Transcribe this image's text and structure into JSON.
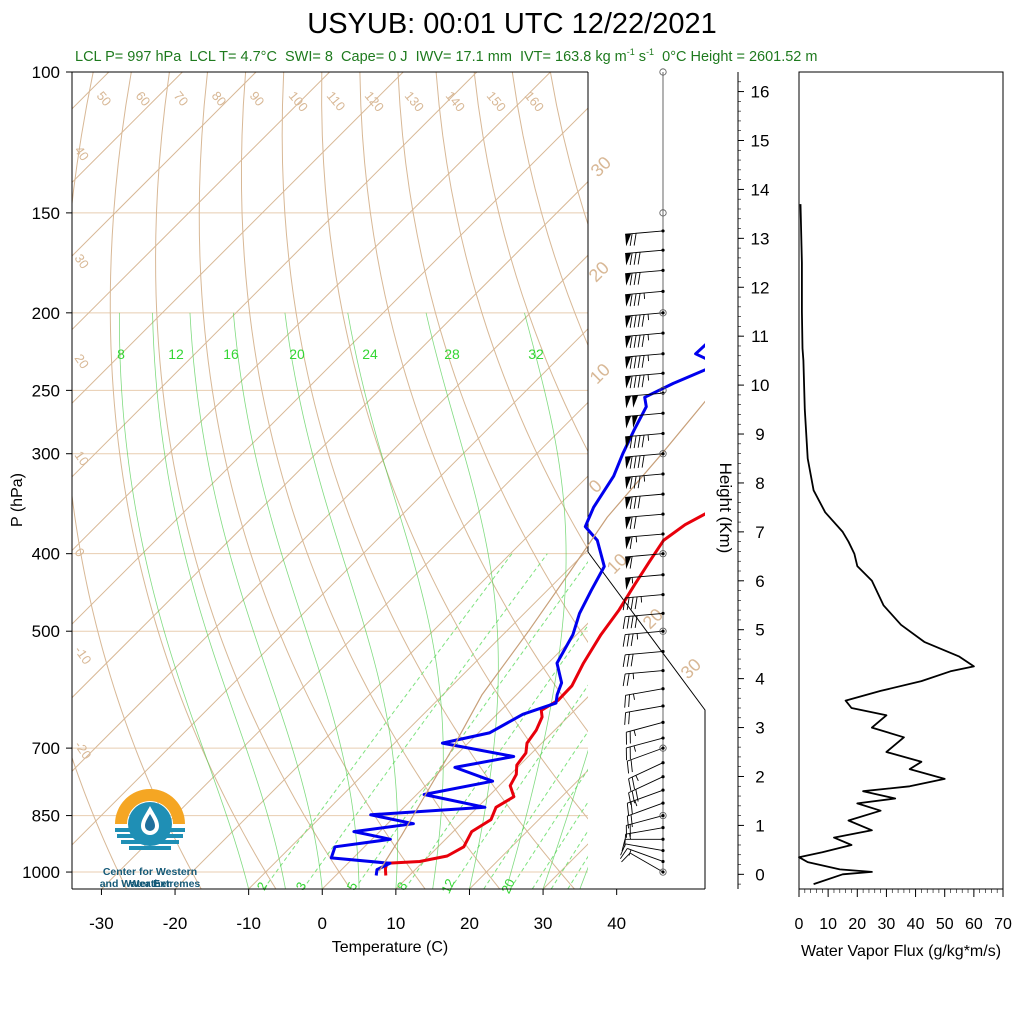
{
  "header": {
    "title": "USYUB: 00:01 UTC 12/22/2021",
    "lcl_p": "LCL P= 997 hPa",
    "lcl_t": "LCL T= 4.7°C",
    "swi": "SWI= 8",
    "cape": "Cape= 0 J",
    "iwv": "IWV= 17.1 mm",
    "ivt": "IVT= 163.8 kg m",
    "ivt_exp1": "-1",
    "ivt_mid": " s",
    "ivt_exp2": "-1",
    "zero_height": "0°C Height = 2601.52 m"
  },
  "logo": {
    "line1": "Center for Western Weather",
    "line2": "and Water Extremes",
    "colors": {
      "sun": "#f5a623",
      "water": "#1f8fb5",
      "drop": "#1f6f9c"
    }
  },
  "chart_data": [
    {
      "type": "line",
      "subtype": "skew-T log-P sounding",
      "xlabel": "Temperature (C)",
      "ylabel": "P (hPa)",
      "xlim": [
        -34,
        52
      ],
      "ylim": [
        1050,
        100
      ],
      "y_scale": "log",
      "x_ticks": [
        -30,
        -20,
        -10,
        0,
        10,
        20,
        30,
        40
      ],
      "y_ticks": [
        100,
        150,
        200,
        250,
        300,
        400,
        500,
        700,
        850,
        1000
      ],
      "grid": true,
      "colors": {
        "temperature": "#e8000b",
        "dewpoint": "#0000ee",
        "parcel": "#c8a07a",
        "isotherms": "#d8b896",
        "dry_adiabats": "#d8b896",
        "mixing_ratio": "#7ee27e",
        "moist_adiabats": "#4ccc4c",
        "isobars": "#e8cdb0"
      },
      "dry_adiabat_labels": [
        "50",
        "60",
        "70",
        "80",
        "90",
        "100",
        "110",
        "120",
        "130",
        "140",
        "150",
        "160"
      ],
      "isotherm_labels": [
        "40",
        "30",
        "20",
        "10",
        "0",
        "-10",
        "-20"
      ],
      "mixing_ratio_labels_top": [
        "8",
        "12",
        "16",
        "20",
        "24",
        "28",
        "32"
      ],
      "mixing_ratio_labels_bottom": [
        "2",
        "3",
        "5",
        "8",
        "12",
        "20"
      ],
      "hodograph_ring_labels": [
        "30",
        "20",
        "10",
        "0",
        "10",
        "20",
        "30"
      ],
      "series": [
        {
          "name": "Temperature",
          "points": [
            [
              6.8,
              1010
            ],
            [
              5.8,
              990
            ],
            [
              5.3,
              975
            ],
            [
              9.5,
              970
            ],
            [
              12.5,
              955
            ],
            [
              13.5,
              930
            ],
            [
              12.5,
              890
            ],
            [
              13.5,
              860
            ],
            [
              12.5,
              830
            ],
            [
              13.5,
              805
            ],
            [
              11.5,
              780
            ],
            [
              10.8,
              755
            ],
            [
              9.6,
              735
            ],
            [
              9.2,
              710
            ],
            [
              8.0,
              690
            ],
            [
              7.5,
              665
            ],
            [
              6.5,
              640
            ],
            [
              5.5,
              628
            ],
            [
              6.4,
              610
            ],
            [
              6.3,
              585
            ],
            [
              4.8,
              548
            ],
            [
              3.3,
              505
            ],
            [
              2.4,
              470
            ],
            [
              1.2,
              440
            ],
            [
              0.0,
              410
            ],
            [
              -1.0,
              385
            ],
            [
              -0.2,
              368
            ],
            [
              1.5,
              353
            ],
            [
              1.3,
              330
            ],
            [
              0.6,
              300
            ],
            [
              -0.8,
              278
            ],
            [
              -3.0,
              260
            ],
            [
              -3.8,
              245
            ],
            [
              -3.0,
              232
            ],
            [
              -3.6,
              215
            ],
            [
              -4.3,
              200
            ],
            [
              -3.0,
              188
            ],
            [
              -3.0,
              176
            ],
            [
              -1.5,
              168
            ],
            [
              -0.8,
              160
            ],
            [
              1.2,
              153
            ],
            [
              1.2,
              150
            ]
          ]
        },
        {
          "name": "Dewpoint",
          "points": [
            [
              5.5,
              1010
            ],
            [
              4.8,
              993
            ],
            [
              5.7,
              975
            ],
            [
              -3,
              960
            ],
            [
              -4,
              930
            ],
            [
              2.5,
              910
            ],
            [
              -3.5,
              890
            ],
            [
              3.5,
              870
            ],
            [
              -3.5,
              848
            ],
            [
              11,
              830
            ],
            [
              1,
              800
            ],
            [
              8.5,
              770
            ],
            [
              1.5,
              740
            ],
            [
              8,
              717
            ],
            [
              -3.5,
              690
            ],
            [
              1.5,
              670
            ],
            [
              3.5,
              635
            ],
            [
              6.5,
              615
            ],
            [
              5.5,
              600
            ],
            [
              4.5,
              580
            ],
            [
              1.2,
              548
            ],
            [
              -0.5,
              505
            ],
            [
              -2.5,
              475
            ],
            [
              -4.0,
              445
            ],
            [
              -5.5,
              415
            ],
            [
              -10.0,
              385
            ],
            [
              -13.5,
              370
            ],
            [
              -15.0,
              350
            ],
            [
              -16.5,
              320
            ],
            [
              -18.3,
              300
            ],
            [
              -20.0,
              280
            ],
            [
              -21.5,
              262
            ],
            [
              -23.0,
              255
            ],
            [
              -21.0,
              245
            ],
            [
              -17.5,
              232
            ],
            [
              -22,
              225
            ],
            [
              -21.5,
              200
            ],
            [
              -24,
              185
            ],
            [
              -23,
              175
            ],
            [
              -18.5,
              162
            ],
            [
              -17.0,
              158
            ],
            [
              -15.5,
              152
            ],
            [
              -15.0,
              150
            ]
          ]
        },
        {
          "name": "Parcel",
          "points": [
            [
              5.3,
              997
            ],
            [
              3.5,
              900
            ],
            [
              1.2,
              800
            ],
            [
              -1.4,
              700
            ],
            [
              -4.7,
              600
            ],
            [
              -7.0,
              500
            ],
            [
              -9.5,
              420
            ],
            [
              -11.8,
              360
            ],
            [
              -13.0,
              300
            ],
            [
              -14.5,
              250
            ],
            [
              -15.8,
              225
            ],
            [
              -14.0,
              200
            ],
            [
              -6.0,
              150
            ],
            [
              0.0,
              125
            ],
            [
              6.0,
              100
            ]
          ]
        }
      ],
      "wind_barbs": {
        "levels_hpa": [
          1000,
          970,
          940,
          910,
          880,
          850,
          820,
          790,
          760,
          730,
          700,
          680,
          650,
          620,
          590,
          560,
          530,
          500,
          475,
          450,
          425,
          400,
          378,
          357,
          337,
          318,
          300,
          283,
          267,
          252,
          238,
          225,
          212,
          200,
          188,
          177,
          167,
          158
        ],
        "speed_kt": [
          10,
          15,
          10,
          10,
          15,
          20,
          20,
          25,
          30,
          25,
          20,
          25,
          25,
          20,
          25,
          25,
          30,
          35,
          40,
          45,
          55,
          60,
          65,
          70,
          80,
          85,
          90,
          95,
          100,
          100,
          95,
          95,
          95,
          95,
          85,
          80,
          80,
          70
        ],
        "direction_deg": [
          300,
          290,
          280,
          270,
          260,
          255,
          250,
          250,
          245,
          245,
          250,
          255,
          255,
          260,
          260,
          265,
          265,
          265,
          265,
          265,
          265,
          265,
          265,
          265,
          265,
          265,
          265,
          265,
          265,
          265,
          265,
          265,
          265,
          265,
          265,
          265,
          265,
          265
        ]
      }
    },
    {
      "type": "line",
      "xlabel": "Water Vapor Flux (g/kg*m/s)",
      "ylabel": "Height (Km)",
      "xlim": [
        0,
        70
      ],
      "ylim": [
        -0.3,
        16.4
      ],
      "x_ticks": [
        0,
        10,
        20,
        30,
        40,
        50,
        60,
        70
      ],
      "y_ticks": [
        0,
        1,
        2,
        3,
        4,
        5,
        6,
        7,
        8,
        9,
        10,
        11,
        12,
        13,
        14,
        15,
        16
      ],
      "series": [
        {
          "points": [
            [
              5,
              -0.2
            ],
            [
              15,
              0
            ],
            [
              25,
              0.05
            ],
            [
              14,
              0.1
            ],
            [
              3,
              0.25
            ],
            [
              0,
              0.35
            ],
            [
              8,
              0.45
            ],
            [
              18,
              0.6
            ],
            [
              12,
              0.75
            ],
            [
              25,
              0.9
            ],
            [
              17,
              1.1
            ],
            [
              28,
              1.3
            ],
            [
              20,
              1.45
            ],
            [
              33,
              1.55
            ],
            [
              22,
              1.7
            ],
            [
              38,
              1.8
            ],
            [
              50,
              1.95
            ],
            [
              38,
              2.15
            ],
            [
              42,
              2.3
            ],
            [
              30,
              2.5
            ],
            [
              36,
              2.8
            ],
            [
              25,
              3.0
            ],
            [
              30,
              3.25
            ],
            [
              18,
              3.4
            ],
            [
              16,
              3.55
            ],
            [
              28,
              3.75
            ],
            [
              42,
              3.95
            ],
            [
              52,
              4.15
            ],
            [
              60,
              4.25
            ],
            [
              55,
              4.45
            ],
            [
              43,
              4.75
            ],
            [
              35,
              5.1
            ],
            [
              29,
              5.5
            ],
            [
              25,
              6.0
            ],
            [
              20,
              6.3
            ],
            [
              19,
              6.55
            ],
            [
              17,
              6.8
            ],
            [
              15,
              7.0
            ],
            [
              9,
              7.4
            ],
            [
              5,
              7.85
            ],
            [
              3,
              8.5
            ],
            [
              2,
              9.5
            ],
            [
              1.5,
              10.5
            ],
            [
              1.2,
              10.75
            ],
            [
              1,
              11.5
            ],
            [
              1,
              12.5
            ],
            [
              0.5,
              13.7
            ]
          ]
        }
      ]
    }
  ]
}
